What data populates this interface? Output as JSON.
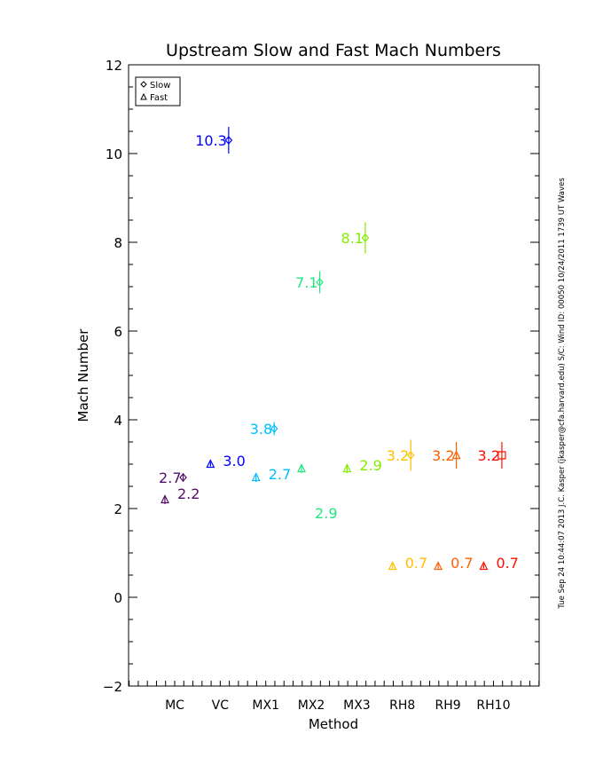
{
  "chart_data": {
    "type": "scatter",
    "title": "Upstream Slow and Fast Mach Numbers",
    "xlabel": "Method",
    "ylabel": "Mach Number",
    "categories": [
      "MC",
      "VC",
      "MX1",
      "MX2",
      "MX3",
      "RH8",
      "RH9",
      "RH10"
    ],
    "ylim": [
      -2,
      12
    ],
    "yticks": [
      -2,
      0,
      2,
      4,
      6,
      8,
      10,
      12
    ],
    "grid": false,
    "legend": {
      "position": "top-left",
      "entries": [
        {
          "marker": "diamond",
          "label": "Slow"
        },
        {
          "marker": "triangle",
          "label": "Fast"
        }
      ]
    },
    "category_colors": [
      "#50106a",
      "#0000ff",
      "#00c0ff",
      "#20e880",
      "#80ee00",
      "#ffc000",
      "#ff6000",
      "#ff1000"
    ],
    "series": [
      {
        "name": "Slow",
        "values": [
          2.7,
          10.3,
          3.8,
          7.1,
          8.1,
          3.2,
          3.2,
          3.2
        ],
        "errors": [
          0.1,
          0.3,
          0.15,
          0.25,
          0.35,
          0.35,
          0.3,
          0.3
        ],
        "labels": [
          "2.7",
          "10.3",
          "3.8",
          "7.1",
          "8.1",
          "3.2",
          "3.2",
          "3.2"
        ],
        "markers": [
          "diamond",
          "diamond",
          "diamond",
          "diamond",
          "diamond",
          "diamond",
          "triangle",
          "square"
        ]
      },
      {
        "name": "Fast",
        "values": [
          2.2,
          3.0,
          2.7,
          2.9,
          2.9,
          0.7,
          0.7,
          0.7
        ],
        "errors": [
          0.1,
          0.05,
          0.1,
          0.1,
          0.1,
          0.05,
          0.05,
          0.05
        ],
        "labels": [
          "2.2",
          "3.0",
          "2.7",
          "2.9",
          "2.9",
          "0.7",
          "0.7",
          "0.7"
        ],
        "markers": [
          "triangle",
          "triangle",
          "triangle",
          "triangle",
          "triangle",
          "triangle",
          "triangle",
          "triangle"
        ]
      }
    ],
    "side_annotation": "Tue Sep 24 10:44:07 2013   J.C. Kasper (jkasper@cfa.harvard.edu)   S/C: Wind ID: 00050 10/24/2011   1739 UT Waves"
  }
}
